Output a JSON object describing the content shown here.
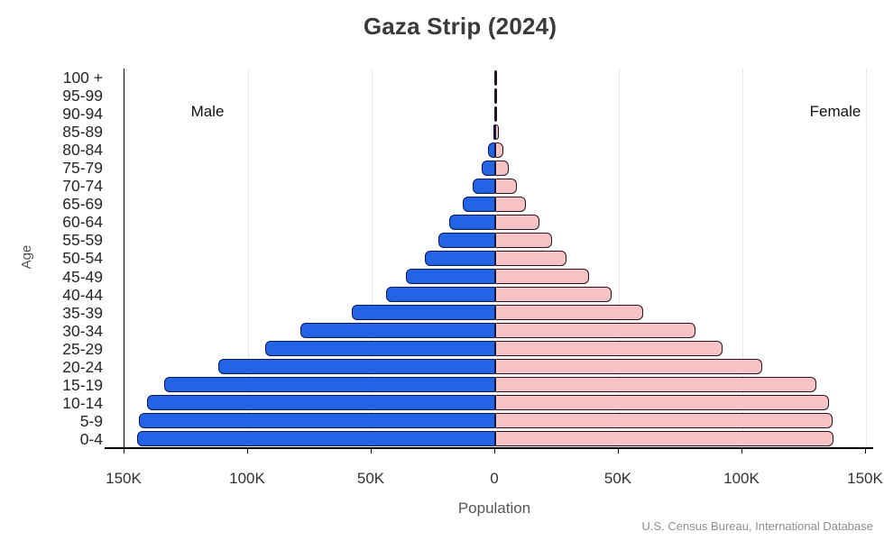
{
  "title": "Gaza Strip (2024)",
  "left_label": "Male",
  "right_label": "Female",
  "xlabel": "Population",
  "ylabel": "Age",
  "source": "U.S. Census Bureau, International Database",
  "x_ticks": [
    "150K",
    "100K",
    "50K",
    "0",
    "50K",
    "100K",
    "150K"
  ],
  "colors": {
    "male_fill": "#2363e6",
    "male_edge": "#0c1752",
    "female_fill": "#f8c3c7",
    "female_edge": "#29141a",
    "grid": "#e7e7e7",
    "axis": "#000000",
    "title_text": "#3a3a3a",
    "tick_text": "#333333",
    "source_text": "#8f8f8f"
  },
  "chart_data": {
    "type": "bar",
    "subtype": "population-pyramid",
    "title": "Gaza Strip (2024)",
    "xlabel": "Population",
    "ylabel": "Age",
    "units": "persons",
    "orientation": "horizontal",
    "xlim": [
      -150000,
      150000
    ],
    "x_tick_step": 50000,
    "grid": "vertical-light",
    "legend_position": "in-plot-top (Male left, Female right)",
    "categories_bottom_to_top": [
      "0-4",
      "5-9",
      "10-14",
      "15-19",
      "20-24",
      "25-29",
      "30-34",
      "35-39",
      "40-44",
      "45-49",
      "50-54",
      "55-59",
      "60-64",
      "65-69",
      "70-74",
      "75-79",
      "80-84",
      "85-89",
      "90-94",
      "95-99",
      "100 +"
    ],
    "series": [
      {
        "name": "Male",
        "direction": "left",
        "values": [
          145000,
          144000,
          141000,
          134000,
          112000,
          93000,
          79000,
          58000,
          44000,
          36000,
          28500,
          23000,
          18500,
          13000,
          9000,
          5400,
          2900,
          900,
          250,
          60,
          10
        ]
      },
      {
        "name": "Female",
        "direction": "right",
        "values": [
          137000,
          136500,
          135000,
          130000,
          108000,
          92000,
          81000,
          60000,
          47000,
          38000,
          29000,
          23000,
          18000,
          12500,
          8800,
          5500,
          3200,
          1400,
          450,
          120,
          30
        ]
      }
    ]
  }
}
